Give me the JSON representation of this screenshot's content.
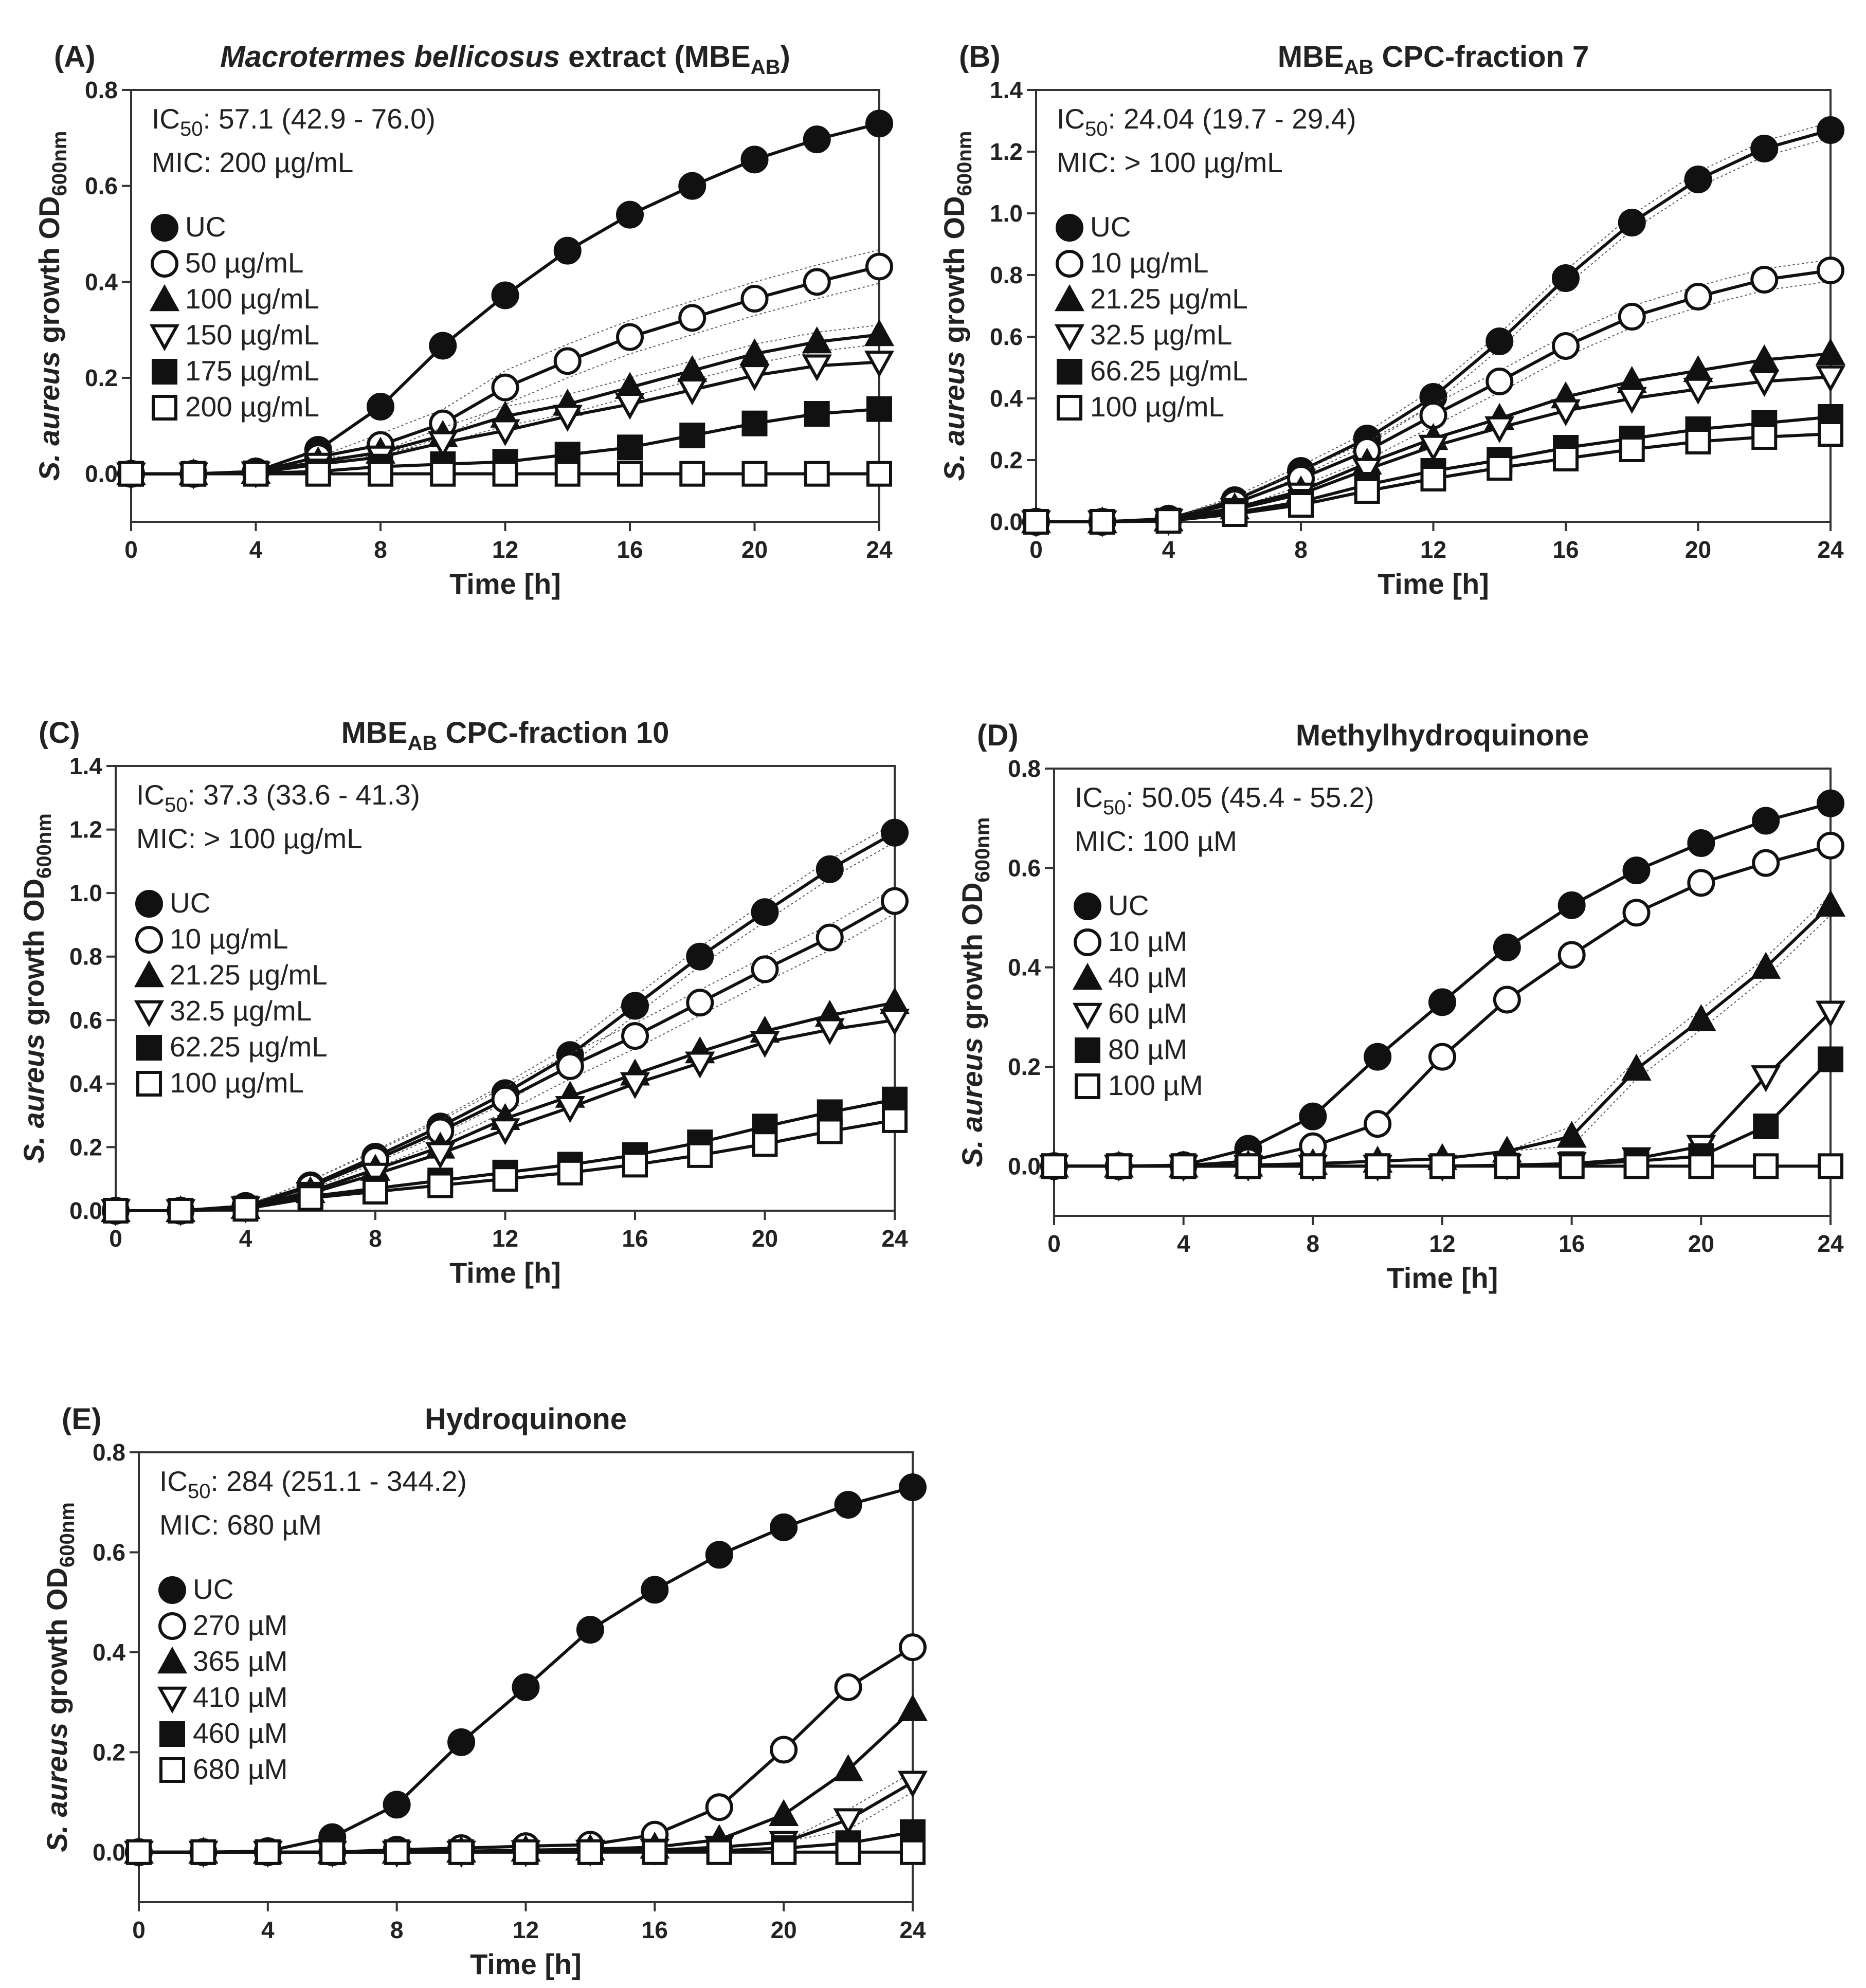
{
  "xlabel": "Time [h]",
  "ylabel_parts": [
    "S. aureus",
    " growth OD",
    "600nm"
  ],
  "chart_data": [
    {
      "type": "line",
      "panel_label": "(A)",
      "title_parts": [
        {
          "text": "Macrotermes bellicosus",
          "style": "italic"
        },
        {
          "text": " extract (MBE"
        },
        {
          "text": "AB",
          "style": "sub"
        },
        {
          "text": ")"
        }
      ],
      "ic50_sub": "50",
      "ic50_value": ": 57.1 (42.9 - 76.0)",
      "mic": "MIC: 200 µg/mL",
      "xlim": [
        0,
        24
      ],
      "ylim": [
        -0.1,
        0.8
      ],
      "xticks": [
        0,
        4,
        8,
        12,
        16,
        20,
        24
      ],
      "yticks": [
        "0.0",
        "0.2",
        "0.4",
        "0.6",
        "0.8"
      ],
      "x": [
        0,
        2,
        4,
        6,
        8,
        10,
        12,
        14,
        16,
        18,
        20,
        22,
        24
      ],
      "series": [
        {
          "name": "UC",
          "marker": "filled-circle",
          "values": [
            0,
            0,
            0.005,
            0.05,
            0.14,
            0.267,
            0.372,
            0.465,
            0.54,
            0.6,
            0.655,
            0.697,
            0.73
          ]
        },
        {
          "name": "50 µg/mL",
          "marker": "open-circle",
          "values": [
            0,
            0,
            0.004,
            0.035,
            0.06,
            0.105,
            0.18,
            0.235,
            0.285,
            0.325,
            0.365,
            0.4,
            0.432
          ],
          "band": 0.035
        },
        {
          "name": "100 µg/mL",
          "marker": "filled-triangle",
          "values": [
            0,
            0,
            0.003,
            0.025,
            0.045,
            0.08,
            0.12,
            0.145,
            0.18,
            0.215,
            0.25,
            0.275,
            0.29
          ],
          "band": 0.02
        },
        {
          "name": "150 µg/mL",
          "marker": "open-triangle-down",
          "values": [
            0,
            0,
            0.002,
            0.02,
            0.035,
            0.065,
            0.09,
            0.12,
            0.145,
            0.175,
            0.205,
            0.225,
            0.233
          ]
        },
        {
          "name": "175 µg/mL",
          "marker": "filled-square",
          "values": [
            0,
            0,
            0.001,
            0.005,
            0.015,
            0.02,
            0.025,
            0.04,
            0.055,
            0.08,
            0.105,
            0.125,
            0.135
          ]
        },
        {
          "name": "200 µg/mL",
          "marker": "open-square",
          "values": [
            0,
            0,
            0,
            0,
            0,
            0,
            0,
            0,
            0,
            0,
            0,
            0,
            0
          ]
        }
      ]
    },
    {
      "type": "line",
      "panel_label": "(B)",
      "title_parts": [
        {
          "text": "MBE"
        },
        {
          "text": "AB",
          "style": "sub"
        },
        {
          "text": " CPC-fraction 7"
        }
      ],
      "ic50_sub": "50",
      "ic50_value": ": 24.04 (19.7 - 29.4)",
      "mic": "MIC: > 100 µg/mL",
      "xlim": [
        0,
        24
      ],
      "ylim": [
        0,
        1.4
      ],
      "xticks": [
        0,
        4,
        8,
        12,
        16,
        20,
        24
      ],
      "yticks": [
        "0.0",
        "0.2",
        "0.4",
        "0.6",
        "0.8",
        "1.0",
        "1.2",
        "1.4"
      ],
      "x": [
        0,
        2,
        4,
        6,
        8,
        10,
        12,
        14,
        16,
        18,
        20,
        22,
        24
      ],
      "series": [
        {
          "name": "UC",
          "marker": "filled-circle",
          "values": [
            0,
            0,
            0.01,
            0.07,
            0.165,
            0.27,
            0.405,
            0.585,
            0.79,
            0.97,
            1.11,
            1.21,
            1.27
          ],
          "band": 0.025
        },
        {
          "name": "10 µg/mL",
          "marker": "open-circle",
          "values": [
            0,
            0,
            0.008,
            0.06,
            0.14,
            0.23,
            0.345,
            0.455,
            0.57,
            0.665,
            0.73,
            0.785,
            0.815
          ],
          "band": 0.035
        },
        {
          "name": "21.25 µg/mL",
          "marker": "filled-triangle",
          "values": [
            0,
            0,
            0.006,
            0.045,
            0.1,
            0.19,
            0.27,
            0.335,
            0.405,
            0.455,
            0.49,
            0.525,
            0.545
          ]
        },
        {
          "name": "32.5 µg/mL",
          "marker": "open-triangle-down",
          "values": [
            0,
            0,
            0.005,
            0.04,
            0.09,
            0.17,
            0.245,
            0.305,
            0.36,
            0.4,
            0.43,
            0.455,
            0.47
          ]
        },
        {
          "name": "66.25 µg/mL",
          "marker": "filled-square",
          "values": [
            0,
            0,
            0.004,
            0.03,
            0.065,
            0.12,
            0.165,
            0.2,
            0.24,
            0.27,
            0.3,
            0.32,
            0.34
          ]
        },
        {
          "name": "100 µg/mL",
          "marker": "open-square",
          "values": [
            0,
            0,
            0.003,
            0.025,
            0.055,
            0.1,
            0.14,
            0.175,
            0.205,
            0.235,
            0.26,
            0.275,
            0.285
          ]
        }
      ]
    },
    {
      "type": "line",
      "panel_label": "(C)",
      "title_parts": [
        {
          "text": "MBE"
        },
        {
          "text": "AB",
          "style": "sub"
        },
        {
          "text": " CPC-fraction 10"
        }
      ],
      "ic50_sub": "50",
      "ic50_value": ": 37.3 (33.6 - 41.3)",
      "mic": "MIC: > 100 µg/mL",
      "xlim": [
        0,
        24
      ],
      "ylim": [
        0,
        1.4
      ],
      "xticks": [
        0,
        4,
        8,
        12,
        16,
        20,
        24
      ],
      "yticks": [
        "0.0",
        "0.2",
        "0.4",
        "0.6",
        "0.8",
        "1.0",
        "1.2",
        "1.4"
      ],
      "x": [
        0,
        2,
        4,
        6,
        8,
        10,
        12,
        14,
        16,
        18,
        20,
        22,
        24
      ],
      "series": [
        {
          "name": "UC",
          "marker": "filled-circle",
          "values": [
            0,
            0,
            0.015,
            0.08,
            0.17,
            0.265,
            0.37,
            0.49,
            0.645,
            0.8,
            0.94,
            1.075,
            1.19
          ],
          "band": 0.03
        },
        {
          "name": "10 µg/mL",
          "marker": "open-circle",
          "values": [
            0,
            0,
            0.013,
            0.075,
            0.16,
            0.25,
            0.35,
            0.455,
            0.55,
            0.655,
            0.76,
            0.86,
            0.975
          ],
          "band": 0.04
        },
        {
          "name": "21.25 µg/mL",
          "marker": "filled-triangle",
          "values": [
            0,
            0,
            0.01,
            0.06,
            0.13,
            0.2,
            0.29,
            0.36,
            0.43,
            0.5,
            0.565,
            0.615,
            0.655
          ]
        },
        {
          "name": "32.5 µg/mL",
          "marker": "open-triangle-down",
          "values": [
            0,
            0,
            0.009,
            0.055,
            0.115,
            0.18,
            0.255,
            0.325,
            0.4,
            0.465,
            0.53,
            0.57,
            0.6
          ]
        },
        {
          "name": "62.25 µg/mL",
          "marker": "filled-square",
          "values": [
            0,
            0,
            0.007,
            0.045,
            0.07,
            0.095,
            0.12,
            0.145,
            0.175,
            0.215,
            0.265,
            0.31,
            0.35
          ]
        },
        {
          "name": "100 µg/mL",
          "marker": "open-square",
          "values": [
            0,
            0,
            0.006,
            0.04,
            0.06,
            0.08,
            0.1,
            0.12,
            0.145,
            0.175,
            0.21,
            0.25,
            0.285
          ]
        }
      ]
    },
    {
      "type": "line",
      "panel_label": "(D)",
      "title_parts": [
        {
          "text": "Methylhydroquinone"
        }
      ],
      "ic50_sub": "50",
      "ic50_value": ": 50.05 (45.4 - 55.2)",
      "mic": "MIC: 100 µM",
      "xlim": [
        0,
        24
      ],
      "ylim": [
        -0.1,
        0.8
      ],
      "xticks": [
        0,
        4,
        8,
        12,
        16,
        20,
        24
      ],
      "yticks": [
        "0.0",
        "0.2",
        "0.4",
        "0.6",
        "0.8"
      ],
      "x": [
        0,
        2,
        4,
        6,
        8,
        10,
        12,
        14,
        16,
        18,
        20,
        22,
        24
      ],
      "series": [
        {
          "name": "UC",
          "marker": "filled-circle",
          "values": [
            0,
            0,
            0.002,
            0.035,
            0.1,
            0.22,
            0.33,
            0.44,
            0.525,
            0.595,
            0.65,
            0.695,
            0.73
          ]
        },
        {
          "name": "10 µM",
          "marker": "open-circle",
          "values": [
            0,
            0,
            0.001,
            0.01,
            0.04,
            0.085,
            0.22,
            0.335,
            0.425,
            0.51,
            0.57,
            0.61,
            0.645
          ]
        },
        {
          "name": "40 µM",
          "marker": "filled-triangle",
          "values": [
            0,
            0,
            0,
            0.002,
            0.005,
            0.01,
            0.015,
            0.03,
            0.06,
            0.195,
            0.295,
            0.4,
            0.525
          ],
          "band": 0.02
        },
        {
          "name": "60 µM",
          "marker": "open-triangle-down",
          "values": [
            0,
            0,
            0,
            0,
            0,
            0,
            0,
            0.002,
            0.005,
            0.015,
            0.04,
            0.18,
            0.31
          ]
        },
        {
          "name": "80 µM",
          "marker": "filled-square",
          "values": [
            0,
            0,
            0,
            0,
            0,
            0,
            0,
            0.001,
            0.004,
            0.01,
            0.02,
            0.08,
            0.215
          ]
        },
        {
          "name": "100 µM",
          "marker": "open-square",
          "values": [
            0,
            0,
            0,
            0,
            0,
            0,
            0,
            0,
            0,
            0,
            0,
            0,
            0
          ]
        }
      ]
    },
    {
      "type": "line",
      "panel_label": "(E)",
      "title_parts": [
        {
          "text": "Hydroquinone"
        }
      ],
      "ic50_sub": "50",
      "ic50_value": ": 284 (251.1 - 344.2)",
      "mic": "MIC: 680 µM",
      "xlim": [
        0,
        24
      ],
      "ylim": [
        -0.1,
        0.8
      ],
      "xticks": [
        0,
        4,
        8,
        12,
        16,
        20,
        24
      ],
      "yticks": [
        "0.0",
        "0.2",
        "0.4",
        "0.6",
        "0.8"
      ],
      "x": [
        0,
        2,
        4,
        6,
        8,
        10,
        12,
        14,
        16,
        18,
        20,
        22,
        24
      ],
      "series": [
        {
          "name": "UC",
          "marker": "filled-circle",
          "values": [
            0,
            0,
            0.002,
            0.03,
            0.095,
            0.22,
            0.33,
            0.445,
            0.525,
            0.595,
            0.65,
            0.695,
            0.73
          ]
        },
        {
          "name": "270 µM",
          "marker": "open-circle",
          "values": [
            0,
            0,
            0,
            0,
            0.005,
            0.008,
            0.012,
            0.015,
            0.035,
            0.09,
            0.205,
            0.33,
            0.41
          ]
        },
        {
          "name": "365 µM",
          "marker": "filled-triangle",
          "values": [
            0,
            0,
            0,
            0,
            0,
            0.002,
            0.004,
            0.006,
            0.01,
            0.025,
            0.075,
            0.165,
            0.285
          ]
        },
        {
          "name": "410 µM",
          "marker": "open-triangle-down",
          "values": [
            0,
            0,
            0,
            0,
            0,
            0,
            0.001,
            0.002,
            0.004,
            0.01,
            0.02,
            0.065,
            0.14
          ],
          "band": 0.02
        },
        {
          "name": "460 µM",
          "marker": "filled-square",
          "values": [
            0,
            0,
            0,
            0,
            0,
            0,
            0,
            0,
            0.001,
            0.003,
            0.008,
            0.018,
            0.04
          ]
        },
        {
          "name": "680 µM",
          "marker": "open-square",
          "values": [
            0,
            0,
            0,
            0,
            0,
            0,
            0,
            0,
            0,
            0,
            0,
            0,
            0
          ]
        }
      ]
    }
  ]
}
